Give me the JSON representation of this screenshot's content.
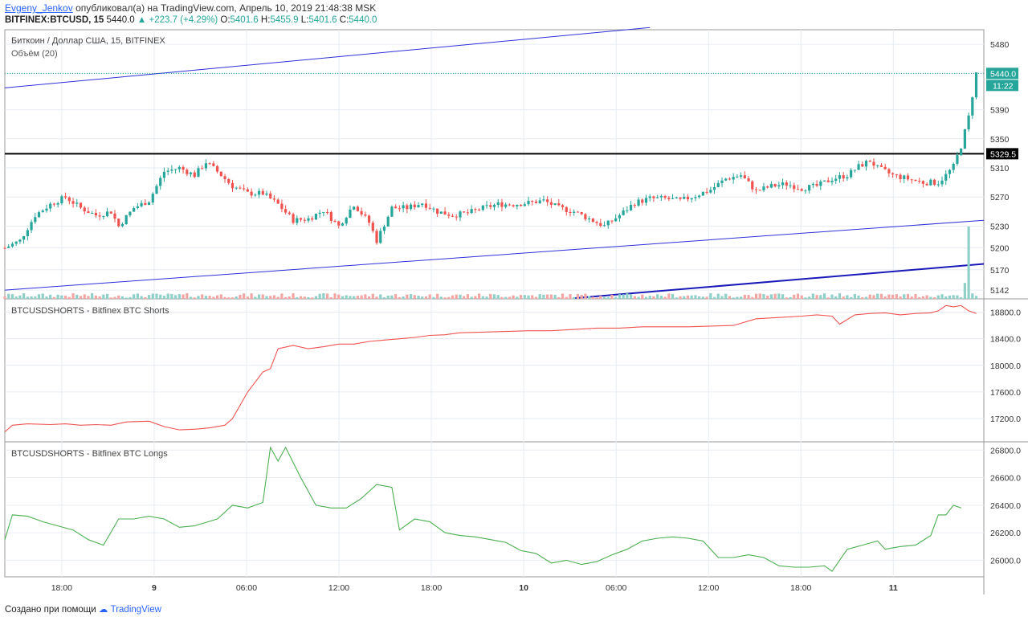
{
  "header": {
    "author": "Evgeny_Jenkov",
    "published_text": "опубликовал(а) на TradingView.com, Апрель 10, 2019 21:48:38 MSK",
    "symbol": "BITFINEX:BTCUSD, 15",
    "last": "5440.0",
    "change": "▲ +223.7 (+4.29%)",
    "o_label": "O:",
    "o": "5401.6",
    "h_label": "H:",
    "h": "5455.9",
    "l_label": "L:",
    "l": "5401.6",
    "c_label": "C:",
    "c": "5440.0"
  },
  "footer": {
    "created_with": "Создано при помощи",
    "brand": "TradingView"
  },
  "colors": {
    "up": "#26a69a",
    "down": "#ef5350",
    "shorts": "#ef5350",
    "longs": "#4caf50",
    "trendline": "#2f2fd8",
    "hline": "#000000"
  },
  "chart_data": [
    {
      "type": "candlestick",
      "title": "Биткоин / Доллар США, 15, BITFINEX",
      "volume_label": "Объём (20)",
      "y_ticks": [
        5480,
        5440,
        5390,
        5350,
        5310,
        5270,
        5230,
        5200,
        5170,
        5142
      ],
      "ylim": [
        5130,
        5500
      ],
      "last_price": "5440.0",
      "countdown": "11:22",
      "horizontal_level": "5329.5",
      "x_ticks": [
        "18:00",
        "9",
        "06:00",
        "12:00",
        "18:00",
        "10",
        "06:00",
        "12:00",
        "18:00",
        "11"
      ],
      "close_path": [
        [
          0,
          5200
        ],
        [
          4,
          5210
        ],
        [
          8,
          5245
        ],
        [
          12,
          5260
        ],
        [
          16,
          5270
        ],
        [
          20,
          5255
        ],
        [
          24,
          5245
        ],
        [
          28,
          5250
        ],
        [
          30,
          5230
        ],
        [
          34,
          5255
        ],
        [
          38,
          5265
        ],
        [
          42,
          5305
        ],
        [
          46,
          5310
        ],
        [
          50,
          5300
        ],
        [
          53,
          5318
        ],
        [
          56,
          5305
        ],
        [
          60,
          5285
        ],
        [
          64,
          5275
        ],
        [
          68,
          5275
        ],
        [
          72,
          5260
        ],
        [
          76,
          5238
        ],
        [
          80,
          5240
        ],
        [
          84,
          5252
        ],
        [
          88,
          5230
        ],
        [
          92,
          5260
        ],
        [
          96,
          5235
        ],
        [
          98,
          5210
        ],
        [
          102,
          5255
        ],
        [
          106,
          5255
        ],
        [
          110,
          5262
        ],
        [
          114,
          5250
        ],
        [
          118,
          5245
        ],
        [
          122,
          5248
        ],
        [
          126,
          5255
        ],
        [
          130,
          5260
        ],
        [
          134,
          5260
        ],
        [
          138,
          5262
        ],
        [
          142,
          5265
        ],
        [
          146,
          5255
        ],
        [
          150,
          5250
        ],
        [
          154,
          5240
        ],
        [
          158,
          5230
        ],
        [
          162,
          5245
        ],
        [
          166,
          5262
        ],
        [
          170,
          5268
        ],
        [
          174,
          5268
        ],
        [
          178,
          5265
        ],
        [
          182,
          5272
        ],
        [
          186,
          5280
        ],
        [
          190,
          5295
        ],
        [
          194,
          5300
        ],
        [
          198,
          5278
        ],
        [
          202,
          5285
        ],
        [
          206,
          5288
        ],
        [
          210,
          5282
        ],
        [
          214,
          5285
        ],
        [
          218,
          5295
        ],
        [
          222,
          5300
        ],
        [
          225,
          5312
        ],
        [
          228,
          5320
        ],
        [
          230,
          5310
        ],
        [
          234,
          5300
        ],
        [
          238,
          5295
        ],
        [
          242,
          5290
        ],
        [
          246,
          5290
        ],
        [
          248,
          5300
        ],
        [
          250,
          5312
        ],
        [
          252,
          5340
        ],
        [
          254,
          5380
        ],
        [
          256,
          5440
        ]
      ],
      "volume": {
        "ylim": [
          0,
          100
        ],
        "spike_x": 254,
        "spike_value": 100,
        "typical": 6
      },
      "xlim": [
        0,
        258
      ]
    },
    {
      "type": "line",
      "title": "BTCUSDSHORTS - Bitfinex BTC Shorts",
      "y_ticks": [
        18800,
        18400,
        18000,
        17600,
        17200
      ],
      "ylim": [
        16850,
        19000
      ],
      "xlim": [
        0,
        258
      ],
      "points": [
        [
          0,
          17000
        ],
        [
          2,
          17100
        ],
        [
          6,
          17120
        ],
        [
          12,
          17110
        ],
        [
          16,
          17120
        ],
        [
          20,
          17100
        ],
        [
          24,
          17110
        ],
        [
          28,
          17100
        ],
        [
          32,
          17150
        ],
        [
          38,
          17160
        ],
        [
          42,
          17080
        ],
        [
          46,
          17030
        ],
        [
          50,
          17040
        ],
        [
          54,
          17060
        ],
        [
          58,
          17100
        ],
        [
          60,
          17200
        ],
        [
          64,
          17600
        ],
        [
          68,
          17900
        ],
        [
          70,
          17950
        ],
        [
          72,
          18250
        ],
        [
          76,
          18300
        ],
        [
          80,
          18250
        ],
        [
          84,
          18280
        ],
        [
          88,
          18320
        ],
        [
          92,
          18320
        ],
        [
          96,
          18360
        ],
        [
          100,
          18380
        ],
        [
          104,
          18400
        ],
        [
          108,
          18420
        ],
        [
          112,
          18450
        ],
        [
          116,
          18460
        ],
        [
          120,
          18490
        ],
        [
          126,
          18500
        ],
        [
          132,
          18510
        ],
        [
          138,
          18520
        ],
        [
          144,
          18520
        ],
        [
          150,
          18540
        ],
        [
          156,
          18560
        ],
        [
          162,
          18560
        ],
        [
          168,
          18580
        ],
        [
          174,
          18580
        ],
        [
          180,
          18580
        ],
        [
          186,
          18590
        ],
        [
          192,
          18600
        ],
        [
          198,
          18700
        ],
        [
          204,
          18720
        ],
        [
          210,
          18740
        ],
        [
          214,
          18760
        ],
        [
          218,
          18740
        ],
        [
          220,
          18620
        ],
        [
          224,
          18760
        ],
        [
          228,
          18780
        ],
        [
          232,
          18790
        ],
        [
          236,
          18760
        ],
        [
          240,
          18780
        ],
        [
          244,
          18790
        ],
        [
          246,
          18820
        ],
        [
          248,
          18900
        ],
        [
          250,
          18880
        ],
        [
          252,
          18900
        ],
        [
          254,
          18820
        ],
        [
          256,
          18780
        ]
      ]
    },
    {
      "type": "line",
      "title": "BTCUSDSHORTS - Bitfinex BTC Longs",
      "y_ticks": [
        26800,
        26600,
        26400,
        26200,
        26000
      ],
      "ylim": [
        25880,
        26860
      ],
      "xlim": [
        0,
        258
      ],
      "points": [
        [
          0,
          26150
        ],
        [
          2,
          26330
        ],
        [
          6,
          26320
        ],
        [
          10,
          26280
        ],
        [
          14,
          26250
        ],
        [
          18,
          26220
        ],
        [
          22,
          26150
        ],
        [
          26,
          26110
        ],
        [
          30,
          26300
        ],
        [
          34,
          26300
        ],
        [
          38,
          26320
        ],
        [
          42,
          26300
        ],
        [
          46,
          26240
        ],
        [
          50,
          26250
        ],
        [
          56,
          26300
        ],
        [
          60,
          26400
        ],
        [
          64,
          26380
        ],
        [
          68,
          26420
        ],
        [
          70,
          26820
        ],
        [
          72,
          26720
        ],
        [
          74,
          26820
        ],
        [
          78,
          26600
        ],
        [
          82,
          26400
        ],
        [
          86,
          26380
        ],
        [
          90,
          26380
        ],
        [
          94,
          26450
        ],
        [
          98,
          26550
        ],
        [
          102,
          26530
        ],
        [
          104,
          26220
        ],
        [
          108,
          26300
        ],
        [
          112,
          26280
        ],
        [
          116,
          26200
        ],
        [
          120,
          26180
        ],
        [
          124,
          26170
        ],
        [
          128,
          26150
        ],
        [
          132,
          26130
        ],
        [
          136,
          26070
        ],
        [
          140,
          26050
        ],
        [
          144,
          25980
        ],
        [
          148,
          26000
        ],
        [
          152,
          25970
        ],
        [
          156,
          25990
        ],
        [
          160,
          26040
        ],
        [
          164,
          26080
        ],
        [
          168,
          26140
        ],
        [
          172,
          26160
        ],
        [
          176,
          26170
        ],
        [
          180,
          26160
        ],
        [
          184,
          26140
        ],
        [
          188,
          26020
        ],
        [
          192,
          26020
        ],
        [
          196,
          26040
        ],
        [
          200,
          26020
        ],
        [
          204,
          25960
        ],
        [
          208,
          25950
        ],
        [
          212,
          25950
        ],
        [
          216,
          25960
        ],
        [
          218,
          25920
        ],
        [
          222,
          26080
        ],
        [
          226,
          26110
        ],
        [
          230,
          26140
        ],
        [
          232,
          26080
        ],
        [
          236,
          26100
        ],
        [
          240,
          26110
        ],
        [
          244,
          26180
        ],
        [
          246,
          26330
        ],
        [
          248,
          26330
        ],
        [
          250,
          26400
        ],
        [
          252,
          26380
        ]
      ]
    }
  ]
}
